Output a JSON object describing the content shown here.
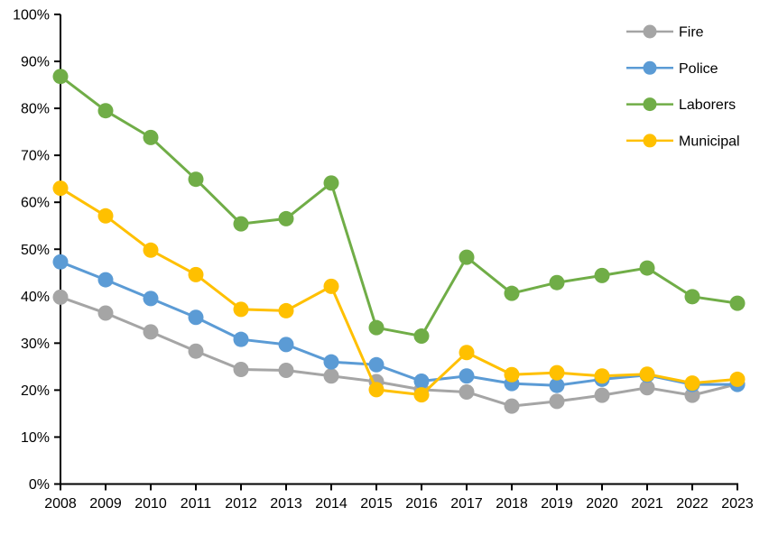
{
  "chart_data": {
    "type": "line",
    "title": "",
    "xlabel": "",
    "ylabel": "",
    "x_labels": [
      "2008",
      "2009",
      "2010",
      "2011",
      "2012",
      "2013",
      "2014",
      "2015",
      "2016",
      "2017",
      "2018",
      "2019",
      "2020",
      "2021",
      "2022",
      "2023"
    ],
    "y_tick_labels": [
      "0%",
      "10%",
      "20%",
      "30%",
      "40%",
      "50%",
      "60%",
      "70%",
      "80%",
      "90%",
      "100%"
    ],
    "ylim": [
      0,
      100
    ],
    "y_tick_step": 10,
    "grid": false,
    "legend_position": "top-right",
    "axis_color": "#000000",
    "background_color": "#FFFFFF",
    "series": [
      {
        "name": "Fire",
        "color": "#A5A5A5",
        "values": [
          39.8,
          36.4,
          32.4,
          28.3,
          24.4,
          24.2,
          23.0,
          21.8,
          20.1,
          19.6,
          16.6,
          17.6,
          18.9,
          20.5,
          18.9,
          21.3
        ]
      },
      {
        "name": "Police",
        "color": "#5B9BD5",
        "values": [
          47.3,
          43.5,
          39.5,
          35.5,
          30.8,
          29.7,
          26.0,
          25.4,
          21.9,
          23.0,
          21.4,
          21.0,
          22.3,
          23.2,
          21.2,
          21.2
        ]
      },
      {
        "name": "Laborers",
        "color": "#70AD47",
        "values": [
          86.8,
          79.5,
          73.8,
          64.9,
          55.4,
          56.5,
          64.1,
          33.3,
          31.5,
          48.3,
          40.6,
          42.9,
          44.4,
          46.0,
          39.9,
          38.5
        ]
      },
      {
        "name": "Municipal",
        "color": "#FFC000",
        "values": [
          63.0,
          57.1,
          49.8,
          44.6,
          37.2,
          36.9,
          42.1,
          20.1,
          19.0,
          28.0,
          23.3,
          23.7,
          23.0,
          23.4,
          21.5,
          22.3
        ]
      }
    ]
  },
  "layout_note": ""
}
